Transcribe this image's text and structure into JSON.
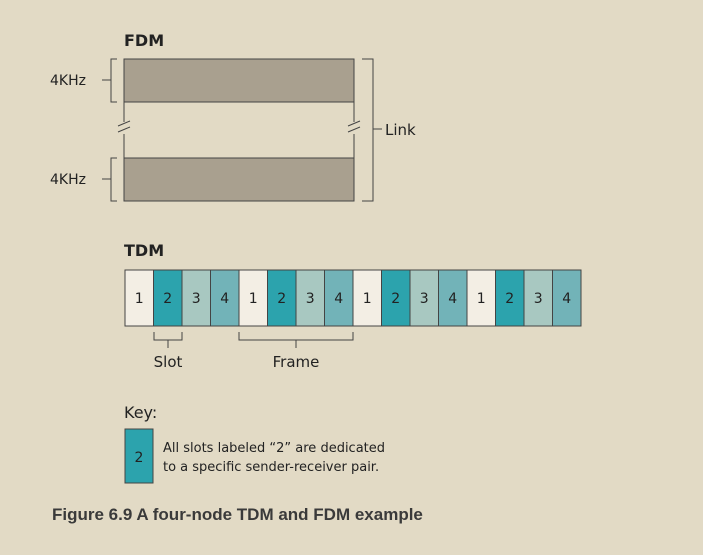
{
  "fdm": {
    "heading": "FDM",
    "band_top_label": "4KHz",
    "band_bottom_label": "4KHz",
    "link_label": "Link"
  },
  "tdm": {
    "heading": "TDM",
    "slots": [
      "1",
      "2",
      "3",
      "4",
      "1",
      "2",
      "3",
      "4",
      "1",
      "2",
      "3",
      "4",
      "1",
      "2",
      "3",
      "4"
    ],
    "slot_label": "Slot",
    "frame_label": "Frame"
  },
  "key": {
    "heading": "Key:",
    "sample_slot": "2",
    "description_line1": "All slots labeled “2” are dedicated",
    "description_line2": "to a specific sender-receiver pair."
  },
  "caption": "Figure 6.9 A four-node TDM and FDM example",
  "colors": {
    "background": "#e2dac5",
    "fdm_band": "#a9a08f",
    "slot_1": "#f3eee4",
    "slot_2": "#2ca3ad",
    "slot_3": "#a8c8c1",
    "slot_4": "#72b3b8"
  }
}
